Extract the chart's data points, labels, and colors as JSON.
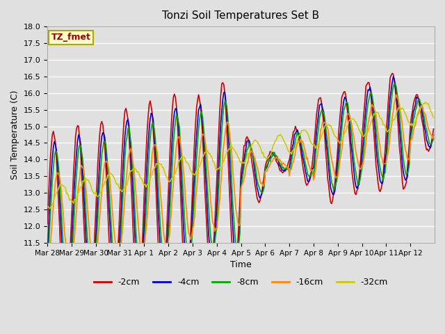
{
  "title": "Tonzi Soil Temperatures Set B",
  "xlabel": "Time",
  "ylabel": "Soil Temperature (C)",
  "ylim": [
    11.5,
    18.0
  ],
  "background_color": "#e0e0e0",
  "plot_bg_color": "#e0e0e0",
  "grid_color": "#ffffff",
  "label_box_text": "TZ_fmet",
  "label_box_bg": "#ffffcc",
  "label_box_border": "#aaaa00",
  "series_colors": {
    "-2cm": "#cc0000",
    "-4cm": "#0000cc",
    "-8cm": "#00aa00",
    "-16cm": "#ff8800",
    "-32cm": "#cccc00"
  },
  "legend_labels": [
    "-2cm",
    "-4cm",
    "-8cm",
    "-16cm",
    "-32cm"
  ],
  "tick_labels": [
    "Mar 28",
    "Mar 29",
    "Mar 30",
    "Mar 31",
    "Apr 1",
    "Apr 2",
    "Apr 3",
    "Apr 4",
    "Apr 5",
    "Apr 6",
    "Apr 7",
    "Apr 8",
    "Apr 9",
    "Apr 10",
    "Apr 11",
    "Apr 12"
  ],
  "yticks": [
    11.5,
    12.0,
    12.5,
    13.0,
    13.5,
    14.0,
    14.5,
    15.0,
    15.5,
    16.0,
    16.5,
    17.0,
    17.5,
    18.0
  ],
  "n_days": 16,
  "pts_per_day": 24
}
